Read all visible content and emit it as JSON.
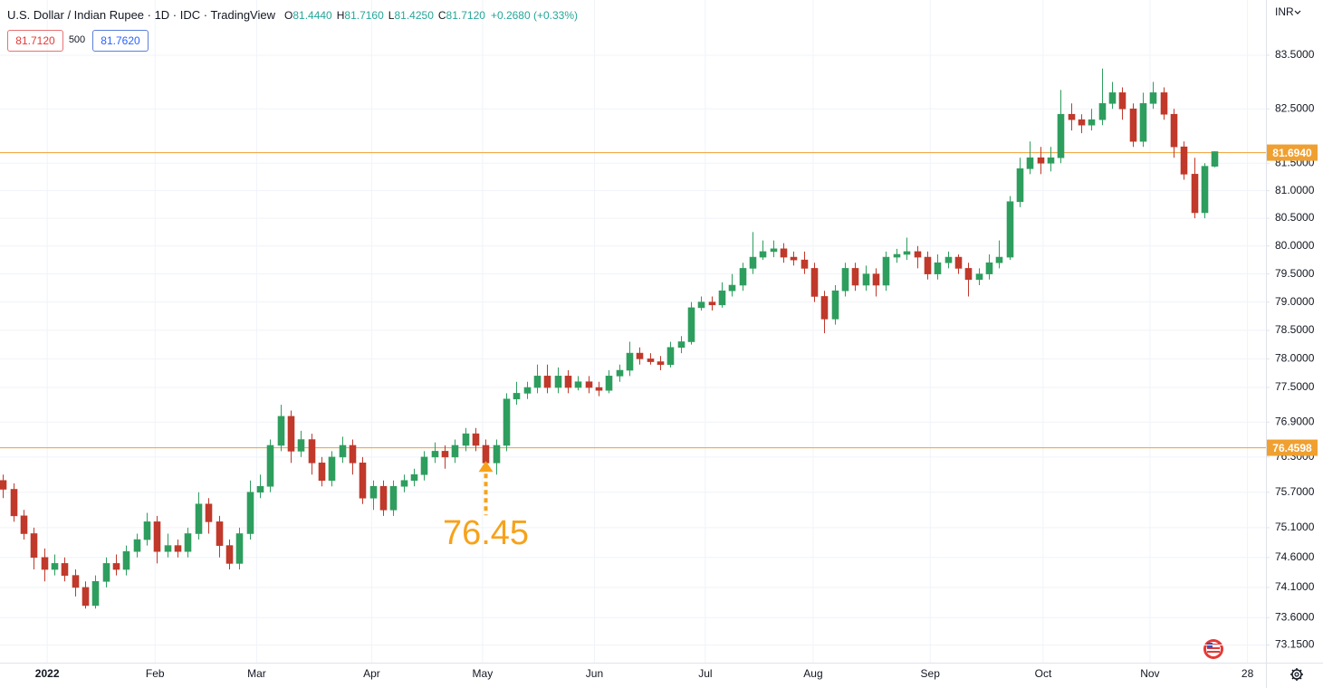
{
  "chart_data": {
    "type": "candlestick",
    "title": "U.S. Dollar / Indian Rupee · 1D · IDC · TradingView",
    "ohlc_legend": [
      {
        "key": "O",
        "value": "81.4440"
      },
      {
        "key": "H",
        "value": "81.7160"
      },
      {
        "key": "L",
        "value": "81.4250"
      },
      {
        "key": "C",
        "value": "81.7120"
      }
    ],
    "change": "+0.2680 (+0.33%)",
    "sell_price": "81.7120",
    "spread": "500",
    "buy_price": "81.7620",
    "currency": "INR",
    "log_scale": true,
    "grid": true,
    "up_color": "#2e9e5e",
    "down_color": "#c0392b",
    "ylim": [
      72.86,
      84.54
    ],
    "yticks": [
      {
        "value": 83.5,
        "label": "83.5000"
      },
      {
        "value": 82.5,
        "label": "82.5000"
      },
      {
        "value": 81.5,
        "label": "81.5000"
      },
      {
        "value": 81.0,
        "label": "81.0000"
      },
      {
        "value": 80.5,
        "label": "80.5000"
      },
      {
        "value": 80.0,
        "label": "80.0000"
      },
      {
        "value": 79.5,
        "label": "79.5000"
      },
      {
        "value": 79.0,
        "label": "79.0000"
      },
      {
        "value": 78.5,
        "label": "78.5000"
      },
      {
        "value": 78.0,
        "label": "78.0000"
      },
      {
        "value": 77.5,
        "label": "77.5000"
      },
      {
        "value": 76.9,
        "label": "76.9000"
      },
      {
        "value": 76.3,
        "label": "76.3000"
      },
      {
        "value": 75.7,
        "label": "75.7000"
      },
      {
        "value": 75.1,
        "label": "75.1000"
      },
      {
        "value": 74.6,
        "label": "74.6000"
      },
      {
        "value": 74.1,
        "label": "74.1000"
      },
      {
        "value": 73.6,
        "label": "73.6000"
      },
      {
        "value": 73.15,
        "label": "73.1500"
      }
    ],
    "xlim": [
      -0.3,
      123
    ],
    "xticks": [
      {
        "value": 4.3,
        "label": "2022"
      },
      {
        "value": 14.8,
        "label": "Feb"
      },
      {
        "value": 24.7,
        "label": "Mar"
      },
      {
        "value": 35.9,
        "label": "Apr"
      },
      {
        "value": 46.7,
        "label": "May"
      },
      {
        "value": 57.6,
        "label": "Jun"
      },
      {
        "value": 68.4,
        "label": "Jul"
      },
      {
        "value": 78.9,
        "label": "Aug"
      },
      {
        "value": 90.3,
        "label": "Sep"
      },
      {
        "value": 101.3,
        "label": "Oct"
      },
      {
        "value": 111.7,
        "label": "Nov"
      },
      {
        "value": 121.2,
        "label": "28"
      }
    ],
    "price_lines": [
      {
        "value": 81.694,
        "label": "81.6940",
        "color": "#f0a030"
      },
      {
        "value": 76.4598,
        "label": "76.4598",
        "color": "#f0a030"
      }
    ],
    "annotation": {
      "x": 47,
      "value": 76.45,
      "color": "#f7a21b"
    },
    "candles": [
      [
        75.9,
        76.0,
        75.6,
        75.75
      ],
      [
        75.75,
        75.85,
        75.2,
        75.3
      ],
      [
        75.3,
        75.4,
        74.9,
        75.0
      ],
      [
        75.0,
        75.1,
        74.4,
        74.6
      ],
      [
        74.6,
        74.75,
        74.2,
        74.4
      ],
      [
        74.4,
        74.65,
        74.3,
        74.5
      ],
      [
        74.5,
        74.6,
        74.2,
        74.3
      ],
      [
        74.3,
        74.4,
        73.95,
        74.1
      ],
      [
        74.1,
        74.2,
        73.75,
        73.8
      ],
      [
        73.8,
        74.3,
        73.75,
        74.2
      ],
      [
        74.2,
        74.6,
        74.1,
        74.5
      ],
      [
        74.5,
        74.65,
        74.3,
        74.4
      ],
      [
        74.4,
        74.8,
        74.3,
        74.7
      ],
      [
        74.7,
        75.0,
        74.6,
        74.9
      ],
      [
        74.9,
        75.35,
        74.8,
        75.2
      ],
      [
        75.2,
        75.3,
        74.5,
        74.7
      ],
      [
        74.7,
        75.0,
        74.6,
        74.8
      ],
      [
        74.8,
        74.9,
        74.6,
        74.7
      ],
      [
        74.7,
        75.1,
        74.6,
        75.0
      ],
      [
        75.0,
        75.7,
        74.9,
        75.5
      ],
      [
        75.5,
        75.6,
        75.0,
        75.2
      ],
      [
        75.2,
        75.3,
        74.6,
        74.8
      ],
      [
        74.8,
        74.9,
        74.4,
        74.5
      ],
      [
        74.5,
        75.1,
        74.4,
        75.0
      ],
      [
        75.0,
        75.9,
        74.9,
        75.7
      ],
      [
        75.7,
        76.0,
        75.6,
        75.8
      ],
      [
        75.8,
        76.6,
        75.7,
        76.5
      ],
      [
        76.5,
        77.2,
        76.4,
        77.0
      ],
      [
        77.0,
        77.1,
        76.2,
        76.4
      ],
      [
        76.4,
        76.75,
        76.3,
        76.6
      ],
      [
        76.6,
        76.7,
        76.0,
        76.2
      ],
      [
        76.2,
        76.3,
        75.8,
        75.9
      ],
      [
        75.9,
        76.4,
        75.8,
        76.3
      ],
      [
        76.3,
        76.65,
        76.2,
        76.5
      ],
      [
        76.5,
        76.6,
        76.0,
        76.2
      ],
      [
        76.2,
        76.3,
        75.5,
        75.6
      ],
      [
        75.6,
        75.9,
        75.4,
        75.8
      ],
      [
        75.8,
        75.9,
        75.3,
        75.4
      ],
      [
        75.4,
        75.9,
        75.3,
        75.8
      ],
      [
        75.8,
        76.0,
        75.7,
        75.9
      ],
      [
        75.9,
        76.1,
        75.8,
        76.0
      ],
      [
        76.0,
        76.4,
        75.9,
        76.3
      ],
      [
        76.3,
        76.55,
        76.2,
        76.4
      ],
      [
        76.4,
        76.5,
        76.1,
        76.3
      ],
      [
        76.3,
        76.6,
        76.2,
        76.5
      ],
      [
        76.5,
        76.8,
        76.4,
        76.7
      ],
      [
        76.7,
        76.8,
        76.4,
        76.5
      ],
      [
        76.5,
        76.6,
        76.1,
        76.2
      ],
      [
        76.2,
        76.6,
        76.0,
        76.5
      ],
      [
        76.5,
        77.4,
        76.4,
        77.3
      ],
      [
        77.3,
        77.6,
        77.2,
        77.4
      ],
      [
        77.4,
        77.6,
        77.3,
        77.5
      ],
      [
        77.5,
        77.9,
        77.4,
        77.7
      ],
      [
        77.7,
        77.9,
        77.4,
        77.5
      ],
      [
        77.5,
        77.85,
        77.4,
        77.7
      ],
      [
        77.7,
        77.8,
        77.4,
        77.5
      ],
      [
        77.5,
        77.7,
        77.45,
        77.6
      ],
      [
        77.6,
        77.7,
        77.4,
        77.5
      ],
      [
        77.5,
        77.6,
        77.35,
        77.45
      ],
      [
        77.45,
        77.8,
        77.4,
        77.7
      ],
      [
        77.7,
        77.9,
        77.6,
        77.8
      ],
      [
        77.8,
        78.3,
        77.7,
        78.1
      ],
      [
        78.1,
        78.2,
        77.9,
        78.0
      ],
      [
        78.0,
        78.1,
        77.9,
        77.95
      ],
      [
        77.95,
        78.05,
        77.8,
        77.9
      ],
      [
        77.9,
        78.3,
        77.85,
        78.2
      ],
      [
        78.2,
        78.4,
        78.1,
        78.3
      ],
      [
        78.3,
        79.0,
        78.25,
        78.9
      ],
      [
        78.9,
        79.1,
        78.85,
        79.0
      ],
      [
        79.0,
        79.1,
        78.85,
        78.95
      ],
      [
        78.95,
        79.35,
        78.9,
        79.2
      ],
      [
        79.2,
        79.5,
        79.1,
        79.3
      ],
      [
        79.3,
        79.7,
        79.2,
        79.6
      ],
      [
        79.6,
        80.25,
        79.5,
        79.8
      ],
      [
        79.8,
        80.1,
        79.75,
        79.9
      ],
      [
        79.9,
        80.1,
        79.8,
        79.95
      ],
      [
        79.95,
        80.05,
        79.7,
        79.8
      ],
      [
        79.8,
        79.9,
        79.65,
        79.75
      ],
      [
        79.75,
        79.9,
        79.5,
        79.6
      ],
      [
        79.6,
        79.7,
        79.0,
        79.1
      ],
      [
        79.1,
        79.2,
        78.45,
        78.7
      ],
      [
        78.7,
        79.3,
        78.6,
        79.2
      ],
      [
        79.2,
        79.7,
        79.1,
        79.6
      ],
      [
        79.6,
        79.7,
        79.2,
        79.3
      ],
      [
        79.3,
        79.65,
        79.2,
        79.5
      ],
      [
        79.5,
        79.6,
        79.1,
        79.3
      ],
      [
        79.3,
        79.9,
        79.2,
        79.8
      ],
      [
        79.8,
        79.95,
        79.7,
        79.85
      ],
      [
        79.85,
        80.15,
        79.75,
        79.9
      ],
      [
        79.9,
        80.0,
        79.6,
        79.8
      ],
      [
        79.8,
        79.9,
        79.4,
        79.5
      ],
      [
        79.5,
        79.85,
        79.4,
        79.7
      ],
      [
        79.7,
        79.9,
        79.6,
        79.8
      ],
      [
        79.8,
        79.85,
        79.5,
        79.6
      ],
      [
        79.6,
        79.7,
        79.1,
        79.4
      ],
      [
        79.4,
        79.6,
        79.3,
        79.5
      ],
      [
        79.5,
        79.85,
        79.4,
        79.7
      ],
      [
        79.7,
        80.1,
        79.6,
        79.8
      ],
      [
        79.8,
        80.9,
        79.75,
        80.8
      ],
      [
        80.8,
        81.6,
        80.7,
        81.4
      ],
      [
        81.4,
        81.9,
        81.3,
        81.6
      ],
      [
        81.6,
        81.8,
        81.3,
        81.5
      ],
      [
        81.5,
        81.8,
        81.35,
        81.6
      ],
      [
        81.6,
        82.85,
        81.5,
        82.4
      ],
      [
        82.4,
        82.6,
        82.1,
        82.3
      ],
      [
        82.3,
        82.4,
        82.05,
        82.2
      ],
      [
        82.2,
        82.5,
        82.1,
        82.3
      ],
      [
        82.3,
        83.25,
        82.2,
        82.6
      ],
      [
        82.6,
        83.0,
        82.5,
        82.8
      ],
      [
        82.8,
        82.9,
        82.3,
        82.5
      ],
      [
        82.5,
        82.6,
        81.8,
        81.9
      ],
      [
        81.9,
        82.8,
        81.8,
        82.6
      ],
      [
        82.6,
        83.0,
        82.5,
        82.8
      ],
      [
        82.8,
        82.9,
        82.3,
        82.4
      ],
      [
        82.4,
        82.5,
        81.6,
        81.8
      ],
      [
        81.8,
        81.9,
        81.2,
        81.3
      ],
      [
        81.3,
        81.6,
        80.5,
        80.6
      ],
      [
        80.6,
        81.5,
        80.5,
        81.444
      ],
      [
        81.444,
        81.716,
        81.425,
        81.712
      ]
    ]
  }
}
